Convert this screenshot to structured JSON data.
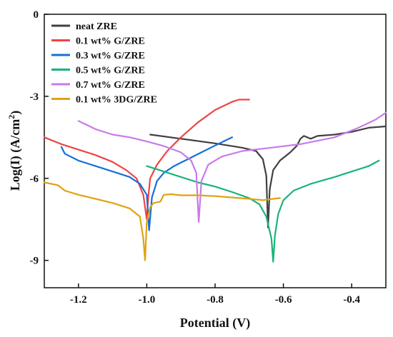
{
  "chart_data": {
    "type": "line",
    "xlabel": "Potential (V)",
    "ylabel": "Log(I) (A/cm²)",
    "ylabel_main": "Log(I) (A/cm",
    "ylabel_sup": "2",
    "ylabel_close": ")",
    "xlim": [
      -1.3,
      -0.3
    ],
    "ylim": [
      -10.0,
      0.0
    ],
    "xticks": [
      -1.2,
      -1.0,
      -0.8,
      -0.6,
      -0.4
    ],
    "xtick_labels": [
      "-1.2",
      "-1.0",
      "-0.8",
      "-0.6",
      "-0.4"
    ],
    "yticks": [
      0,
      -3,
      -6,
      -9
    ],
    "ytick_labels": [
      "0",
      "-3",
      "-6",
      "-9"
    ],
    "legend_position": "top-left",
    "grid": false,
    "series": [
      {
        "name": "neat ZRE",
        "color": "#404040",
        "points": [
          [
            -0.99,
            -4.4
          ],
          [
            -0.9,
            -4.55
          ],
          [
            -0.8,
            -4.72
          ],
          [
            -0.72,
            -4.88
          ],
          [
            -0.68,
            -5.0
          ],
          [
            -0.66,
            -5.3
          ],
          [
            -0.65,
            -5.9
          ],
          [
            -0.645,
            -7.8
          ],
          [
            -0.64,
            -6.4
          ],
          [
            -0.63,
            -5.7
          ],
          [
            -0.61,
            -5.35
          ],
          [
            -0.58,
            -5.05
          ],
          [
            -0.56,
            -4.8
          ],
          [
            -0.55,
            -4.55
          ],
          [
            -0.54,
            -4.45
          ],
          [
            -0.52,
            -4.55
          ],
          [
            -0.5,
            -4.45
          ],
          [
            -0.45,
            -4.4
          ],
          [
            -0.4,
            -4.3
          ],
          [
            -0.35,
            -4.15
          ],
          [
            -0.3,
            -4.1
          ]
        ]
      },
      {
        "name": "0.1 wt% G/ZRE",
        "color": "#ef4444",
        "points": [
          [
            -1.3,
            -4.5
          ],
          [
            -1.25,
            -4.75
          ],
          [
            -1.2,
            -4.95
          ],
          [
            -1.15,
            -5.15
          ],
          [
            -1.1,
            -5.4
          ],
          [
            -1.06,
            -5.7
          ],
          [
            -1.03,
            -6.0
          ],
          [
            -1.01,
            -6.6
          ],
          [
            -1.0,
            -7.5
          ],
          [
            -0.995,
            -6.6
          ],
          [
            -0.99,
            -6.0
          ],
          [
            -0.97,
            -5.5
          ],
          [
            -0.94,
            -5.0
          ],
          [
            -0.9,
            -4.5
          ],
          [
            -0.85,
            -3.95
          ],
          [
            -0.8,
            -3.5
          ],
          [
            -0.75,
            -3.2
          ],
          [
            -0.73,
            -3.12
          ],
          [
            -0.7,
            -3.12
          ]
        ]
      },
      {
        "name": "0.3 wt% G/ZRE",
        "color": "#1570d8",
        "points": [
          [
            -1.25,
            -4.85
          ],
          [
            -1.24,
            -5.1
          ],
          [
            -1.2,
            -5.35
          ],
          [
            -1.15,
            -5.55
          ],
          [
            -1.1,
            -5.75
          ],
          [
            -1.05,
            -5.95
          ],
          [
            -1.02,
            -6.2
          ],
          [
            -1.0,
            -6.6
          ],
          [
            -0.993,
            -7.9
          ],
          [
            -0.985,
            -6.7
          ],
          [
            -0.97,
            -6.1
          ],
          [
            -0.95,
            -5.8
          ],
          [
            -0.92,
            -5.55
          ],
          [
            -0.88,
            -5.3
          ],
          [
            -0.84,
            -5.05
          ],
          [
            -0.8,
            -4.8
          ],
          [
            -0.77,
            -4.62
          ],
          [
            -0.75,
            -4.5
          ]
        ]
      },
      {
        "name": "0.5 wt% G/ZRE",
        "color": "#1ab37a",
        "points": [
          [
            -1.0,
            -5.55
          ],
          [
            -0.95,
            -5.75
          ],
          [
            -0.9,
            -5.95
          ],
          [
            -0.85,
            -6.15
          ],
          [
            -0.8,
            -6.3
          ],
          [
            -0.75,
            -6.5
          ],
          [
            -0.7,
            -6.72
          ],
          [
            -0.67,
            -6.95
          ],
          [
            -0.65,
            -7.4
          ],
          [
            -0.635,
            -8.2
          ],
          [
            -0.63,
            -9.05
          ],
          [
            -0.625,
            -8.1
          ],
          [
            -0.615,
            -7.3
          ],
          [
            -0.6,
            -6.8
          ],
          [
            -0.57,
            -6.45
          ],
          [
            -0.52,
            -6.2
          ],
          [
            -0.45,
            -5.95
          ],
          [
            -0.4,
            -5.75
          ],
          [
            -0.35,
            -5.55
          ],
          [
            -0.32,
            -5.35
          ]
        ]
      },
      {
        "name": "0.7 wt% G/ZRE",
        "color": "#c77be8",
        "points": [
          [
            -1.2,
            -3.9
          ],
          [
            -1.15,
            -4.2
          ],
          [
            -1.1,
            -4.4
          ],
          [
            -1.05,
            -4.5
          ],
          [
            -1.0,
            -4.65
          ],
          [
            -0.95,
            -4.82
          ],
          [
            -0.9,
            -5.05
          ],
          [
            -0.87,
            -5.35
          ],
          [
            -0.855,
            -5.8
          ],
          [
            -0.848,
            -7.6
          ],
          [
            -0.84,
            -6.1
          ],
          [
            -0.82,
            -5.5
          ],
          [
            -0.78,
            -5.2
          ],
          [
            -0.72,
            -5.0
          ],
          [
            -0.65,
            -4.9
          ],
          [
            -0.55,
            -4.75
          ],
          [
            -0.45,
            -4.5
          ],
          [
            -0.38,
            -4.15
          ],
          [
            -0.33,
            -3.85
          ],
          [
            -0.3,
            -3.6
          ]
        ]
      },
      {
        "name": "0.1 wt% 3DG/ZRE",
        "color": "#e0a214",
        "points": [
          [
            -1.3,
            -6.15
          ],
          [
            -1.26,
            -6.25
          ],
          [
            -1.24,
            -6.45
          ],
          [
            -1.2,
            -6.6
          ],
          [
            -1.15,
            -6.75
          ],
          [
            -1.1,
            -6.9
          ],
          [
            -1.05,
            -7.1
          ],
          [
            -1.02,
            -7.4
          ],
          [
            -1.01,
            -8.2
          ],
          [
            -1.005,
            -9.0
          ],
          [
            -1.0,
            -7.6
          ],
          [
            -0.99,
            -7.05
          ],
          [
            -0.98,
            -6.9
          ],
          [
            -0.96,
            -6.85
          ],
          [
            -0.95,
            -6.6
          ],
          [
            -0.93,
            -6.58
          ],
          [
            -0.9,
            -6.62
          ],
          [
            -0.85,
            -6.62
          ],
          [
            -0.8,
            -6.65
          ],
          [
            -0.75,
            -6.7
          ],
          [
            -0.7,
            -6.75
          ],
          [
            -0.66,
            -6.8
          ],
          [
            -0.63,
            -6.75
          ],
          [
            -0.61,
            -6.72
          ]
        ]
      }
    ]
  }
}
